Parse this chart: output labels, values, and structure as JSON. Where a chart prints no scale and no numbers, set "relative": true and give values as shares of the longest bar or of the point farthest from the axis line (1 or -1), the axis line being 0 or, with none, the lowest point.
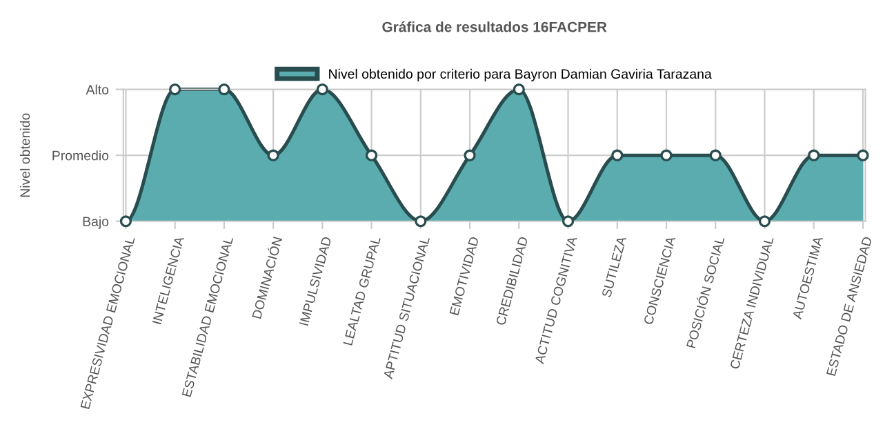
{
  "chart_data": {
    "type": "area",
    "title": "Gráfica de resultados 16FACPER",
    "ylabel": "Nivel obtenido",
    "categories": [
      "EXPRESIVIDAD EMOCIONAL",
      "INTELIGENCIA",
      "ESTABILIDAD EMOCIONAL",
      "DOMINACIÓN",
      "IMPULSIVIDAD",
      "LEALTAD GRUPAL",
      "APTITUD SITUACIONAL",
      "EMOTIVIDAD",
      "CREDIBILIDAD",
      "ACTITUD COGNITIVA",
      "SUTILEZA",
      "CONSCIENCIA",
      "POSICIÓN SOCIAL",
      "CERTEZA INDIVIDUAL",
      "AUTOESTIMA",
      "ESTADO DE ANSIEDAD"
    ],
    "series": [
      {
        "name": "Nivel obtenido por criterio para Bayron Damian Gaviria Tarazana",
        "color": "#5aacaf",
        "values": [
          0,
          1,
          1,
          0.5,
          1,
          0.5,
          0,
          0.5,
          1,
          0,
          0.5,
          0.5,
          0.5,
          0,
          0.5,
          0.5
        ]
      }
    ],
    "relative": true,
    "annotations": [
      "Bajo",
      "Promedio",
      "Alto"
    ],
    "grid": true,
    "legend": "top",
    "marker": "circle",
    "line_style": "solid"
  }
}
